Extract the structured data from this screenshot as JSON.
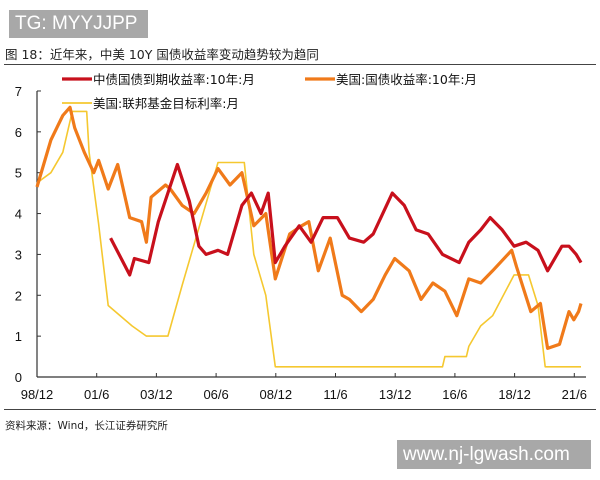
{
  "watermark_top": "TG: MYYJJPP",
  "watermark_bottom": "www.nj-lgwash.com",
  "figure_title": "图 18：近年来，中美 10Y 国债收益率变动趋势较为趋同",
  "source": "资料来源：Wind，长江证券研究所",
  "chart_data": {
    "type": "line",
    "title": "",
    "xlabel": "",
    "ylabel": "",
    "ylim": [
      0,
      7
    ],
    "yticks": [
      "0",
      "1",
      "2",
      "3",
      "4",
      "5",
      "6",
      "7"
    ],
    "xlim": [
      "1998-12",
      "2021-9"
    ],
    "xticks": [
      "98/12",
      "01/6",
      "03/12",
      "06/6",
      "08/12",
      "11/6",
      "13/12",
      "16/6",
      "18/12",
      "21/6"
    ],
    "grid": false,
    "legend": "top",
    "series": [
      {
        "name": "中债国债到期收益率:10年:月",
        "color": "#c8101c",
        "x": [
          2002.0,
          2002.8,
          2003.0,
          2003.6,
          2004.0,
          2004.8,
          2005.3,
          2005.7,
          2006.0,
          2006.5,
          2006.9,
          2007.5,
          2007.9,
          2008.3,
          2008.6,
          2008.9,
          2009.3,
          2009.9,
          2010.4,
          2010.9,
          2011.5,
          2012.0,
          2012.6,
          2013.0,
          2013.8,
          2014.3,
          2014.8,
          2015.3,
          2015.9,
          2016.6,
          2017.0,
          2017.5,
          2017.9,
          2018.4,
          2018.9,
          2019.4,
          2019.9,
          2020.3,
          2020.9,
          2021.2,
          2021.5,
          2021.7
        ],
        "y": [
          3.4,
          2.5,
          2.9,
          2.8,
          3.8,
          5.2,
          4.3,
          3.2,
          3.0,
          3.1,
          3.0,
          4.2,
          4.5,
          4.0,
          4.5,
          2.8,
          3.2,
          3.7,
          3.3,
          3.9,
          3.9,
          3.4,
          3.3,
          3.5,
          4.5,
          4.2,
          3.6,
          3.5,
          3.0,
          2.8,
          3.3,
          3.6,
          3.9,
          3.6,
          3.2,
          3.3,
          3.1,
          2.6,
          3.2,
          3.2,
          3.0,
          2.8
        ]
      },
      {
        "name": "美国:国债收益率:10年:月",
        "color": "#f07a1a",
        "x": [
          1998.92,
          1999.5,
          2000.0,
          2000.3,
          2000.5,
          2000.9,
          2001.3,
          2001.5,
          2001.9,
          2002.3,
          2002.8,
          2003.3,
          2003.5,
          2003.7,
          2004.3,
          2004.5,
          2005.0,
          2005.5,
          2006.0,
          2006.5,
          2007.0,
          2007.5,
          2008.0,
          2008.5,
          2008.9,
          2009.5,
          2010.0,
          2010.3,
          2010.7,
          2011.2,
          2011.7,
          2012.0,
          2012.5,
          2013.0,
          2013.5,
          2013.9,
          2014.5,
          2015.0,
          2015.5,
          2016.0,
          2016.5,
          2017.0,
          2017.5,
          2018.0,
          2018.8,
          2019.0,
          2019.6,
          2020.0,
          2020.3,
          2020.8,
          2021.2,
          2021.4,
          2021.6,
          2021.7
        ],
        "y": [
          4.65,
          5.8,
          6.4,
          6.6,
          6.1,
          5.5,
          5.0,
          5.3,
          4.6,
          5.2,
          3.9,
          3.8,
          3.3,
          4.4,
          4.7,
          4.6,
          4.2,
          4.0,
          4.5,
          5.1,
          4.7,
          5.0,
          3.7,
          4.0,
          2.4,
          3.5,
          3.7,
          3.8,
          2.6,
          3.4,
          2.0,
          1.9,
          1.6,
          1.9,
          2.5,
          2.9,
          2.6,
          1.9,
          2.3,
          2.1,
          1.5,
          2.4,
          2.3,
          2.6,
          3.1,
          2.7,
          1.6,
          1.8,
          0.7,
          0.8,
          1.6,
          1.4,
          1.6,
          1.8
        ]
      },
      {
        "name": "美国:联邦基金目标利率:月",
        "color": "#f5c830",
        "x": [
          1998.92,
          1999.5,
          2000.0,
          2000.4,
          2001.0,
          2001.1,
          2001.5,
          2001.9,
          2002.9,
          2003.5,
          2004.4,
          2005.0,
          2006.0,
          2006.5,
          2007.6,
          2008.0,
          2008.5,
          2008.9,
          2015.9,
          2016.0,
          2016.9,
          2017.0,
          2017.5,
          2018.0,
          2018.9,
          2019.5,
          2019.9,
          2020.2,
          2021.7
        ],
        "y": [
          4.75,
          5.0,
          5.5,
          6.5,
          6.5,
          5.5,
          3.75,
          1.75,
          1.25,
          1.0,
          1.0,
          2.25,
          4.25,
          5.25,
          5.25,
          3.0,
          2.0,
          0.25,
          0.25,
          0.5,
          0.5,
          0.75,
          1.25,
          1.5,
          2.5,
          2.5,
          1.75,
          0.25,
          0.25
        ]
      }
    ]
  }
}
